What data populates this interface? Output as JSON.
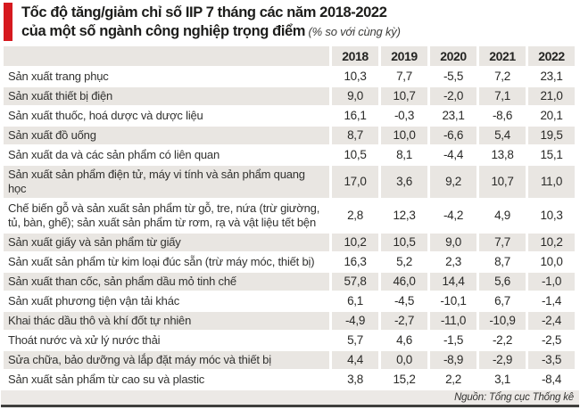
{
  "title": {
    "line1": "Tốc độ tăng/giảm chỉ số IIP 7 tháng các năm 2018-2022",
    "line2_bold": "của một số ngành công nghiệp trọng điểm",
    "line2_note": " (% so với cùng kỳ)"
  },
  "colors": {
    "accent_red": "#d6191f",
    "band_gray": "#e9e6e2",
    "text_dark": "#2a2a28",
    "bottom_rule": "#3f3f3d"
  },
  "chart_data": {
    "type": "table",
    "title": "Tốc độ tăng/giảm chỉ số IIP 7 tháng các năm 2018-2022 của một số ngành công nghiệp trọng điểm (% so với cùng kỳ)",
    "columns": [
      "2018",
      "2019",
      "2020",
      "2021",
      "2022"
    ],
    "rows": [
      {
        "label": "Sản xuất trang phục",
        "values": [
          "10,3",
          "7,7",
          "-5,5",
          "7,2",
          "23,1"
        ]
      },
      {
        "label": "Sản xuất thiết bị điện",
        "values": [
          "9,0",
          "10,7",
          "-2,0",
          "7,1",
          "21,0"
        ]
      },
      {
        "label": "Sản xuất thuốc, hoá dược và dược liệu",
        "values": [
          "16,1",
          "-0,3",
          "23,1",
          "-8,6",
          "20,1"
        ]
      },
      {
        "label": "Sản xuất đồ uống",
        "values": [
          "8,7",
          "10,0",
          "-6,6",
          "5,4",
          "19,5"
        ]
      },
      {
        "label": "Sản xuất da và các sản phẩm có liên quan",
        "values": [
          "10,5",
          "8,1",
          "-4,4",
          "13,8",
          "15,1"
        ]
      },
      {
        "label": "Sản xuất sản phẩm điện tử, máy vi tính và sản phẩm quang học",
        "values": [
          "17,0",
          "3,6",
          "9,2",
          "10,7",
          "11,0"
        ]
      },
      {
        "label": "Chế biến gỗ và sản xuất sản phẩm từ gỗ, tre, nứa (trừ giường, tủ, bàn, ghế); sản xuất sản phẩm từ rơm, rạ và vật liệu tết bện",
        "values": [
          "2,8",
          "12,3",
          "-4,2",
          "4,9",
          "10,3"
        ]
      },
      {
        "label": "Sản xuất giấy và sản phẩm từ giấy",
        "values": [
          "10,2",
          "10,5",
          "9,0",
          "7,7",
          "10,2"
        ]
      },
      {
        "label": "Sản xuất sản phẩm từ kim loại đúc sẵn (trừ máy móc, thiết bị)",
        "values": [
          "16,3",
          "5,2",
          "2,3",
          "8,7",
          "10,0"
        ]
      },
      {
        "label": "Sản xuất than cốc, sản phẩm dầu mỏ tinh chế",
        "values": [
          "57,8",
          "46,0",
          "14,4",
          "5,6",
          "-1,0"
        ]
      },
      {
        "label": "Sản xuất phương tiện vận tải khác",
        "values": [
          "6,1",
          "-4,5",
          "-10,1",
          "6,7",
          "-1,4"
        ]
      },
      {
        "label": "Khai thác dầu thô và khí đốt tự nhiên",
        "values": [
          "-4,9",
          "-2,7",
          "-11,0",
          "-10,9",
          "-2,4"
        ]
      },
      {
        "label": "Thoát nước và xử lý nước thải",
        "values": [
          "5,7",
          "4,6",
          "-1,5",
          "-2,2",
          "-2,5"
        ]
      },
      {
        "label": "Sửa chữa, bảo dưỡng và lắp đặt máy móc và thiết bị",
        "values": [
          "4,4",
          "0,0",
          "-8,9",
          "-2,9",
          "-3,5"
        ]
      },
      {
        "label": "Sản xuất sản phẩm từ cao su và plastic",
        "values": [
          "3,8",
          "15,2",
          "2,2",
          "3,1",
          "-8,4"
        ]
      }
    ]
  },
  "footer": {
    "source": "Nguồn: Tổng cục Thống kê"
  }
}
